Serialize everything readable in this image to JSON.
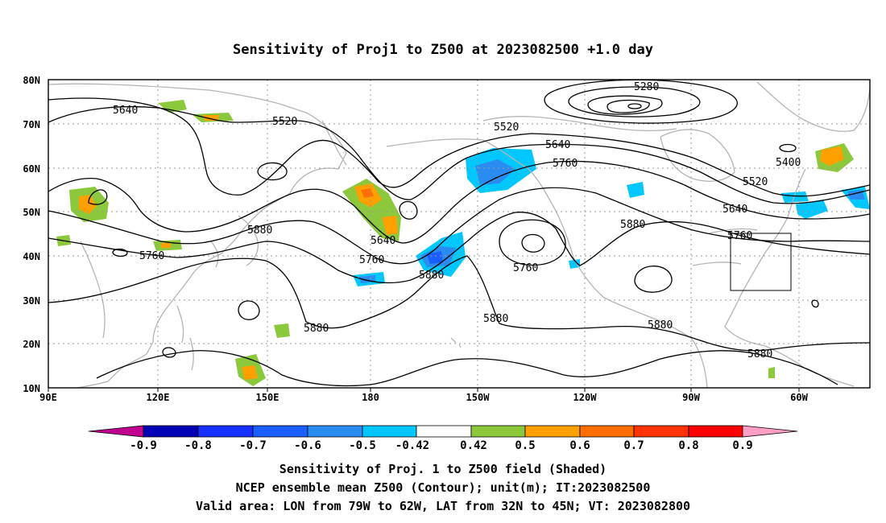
{
  "title": "Sensitivity of Proj1 to Z500 at 2023082500 +1.0 day",
  "map": {
    "lon_labels": [
      "90E",
      "120E",
      "150E",
      "180",
      "150W",
      "120W",
      "90W",
      "60W"
    ],
    "lat_labels": [
      "80N",
      "70N",
      "60N",
      "50N",
      "40N",
      "30N",
      "20N",
      "10N"
    ],
    "contour_labels": [
      "5640",
      "5520",
      "5280",
      "5520",
      "5640",
      "5760",
      "5400",
      "5520",
      "5640",
      "5760",
      "5880",
      "5760",
      "5640",
      "5760",
      "5880",
      "5760",
      "5880",
      "5880",
      "5880",
      "5880",
      "5880"
    ],
    "colors": {
      "coast": "#b4b4b4",
      "contour": "#000000",
      "grid": "#9a9a9a"
    }
  },
  "colorbar": {
    "labels": [
      "-0.9",
      "-0.8",
      "-0.7",
      "-0.6",
      "-0.5",
      "-0.42",
      "0.42",
      "0.5",
      "0.6",
      "0.7",
      "0.8",
      "0.9"
    ],
    "colors": [
      "#c0008f",
      "#0000b4",
      "#1630ff",
      "#1a5eff",
      "#2a8cf0",
      "#00c8ff",
      "#ffffff",
      "#8cc83c",
      "#ffa000",
      "#ff6e00",
      "#ff3200",
      "#ff0000",
      "#ff9fc8"
    ]
  },
  "footer": {
    "line1": "Sensitivity of Proj. 1 to Z500 field (Shaded)",
    "line2": "NCEP ensemble mean Z500 (Contour); unit(m); IT:2023082500",
    "line3": "Valid area: LON from 79W to 62W, LAT from 32N to 45N; VT: 2023082800"
  }
}
